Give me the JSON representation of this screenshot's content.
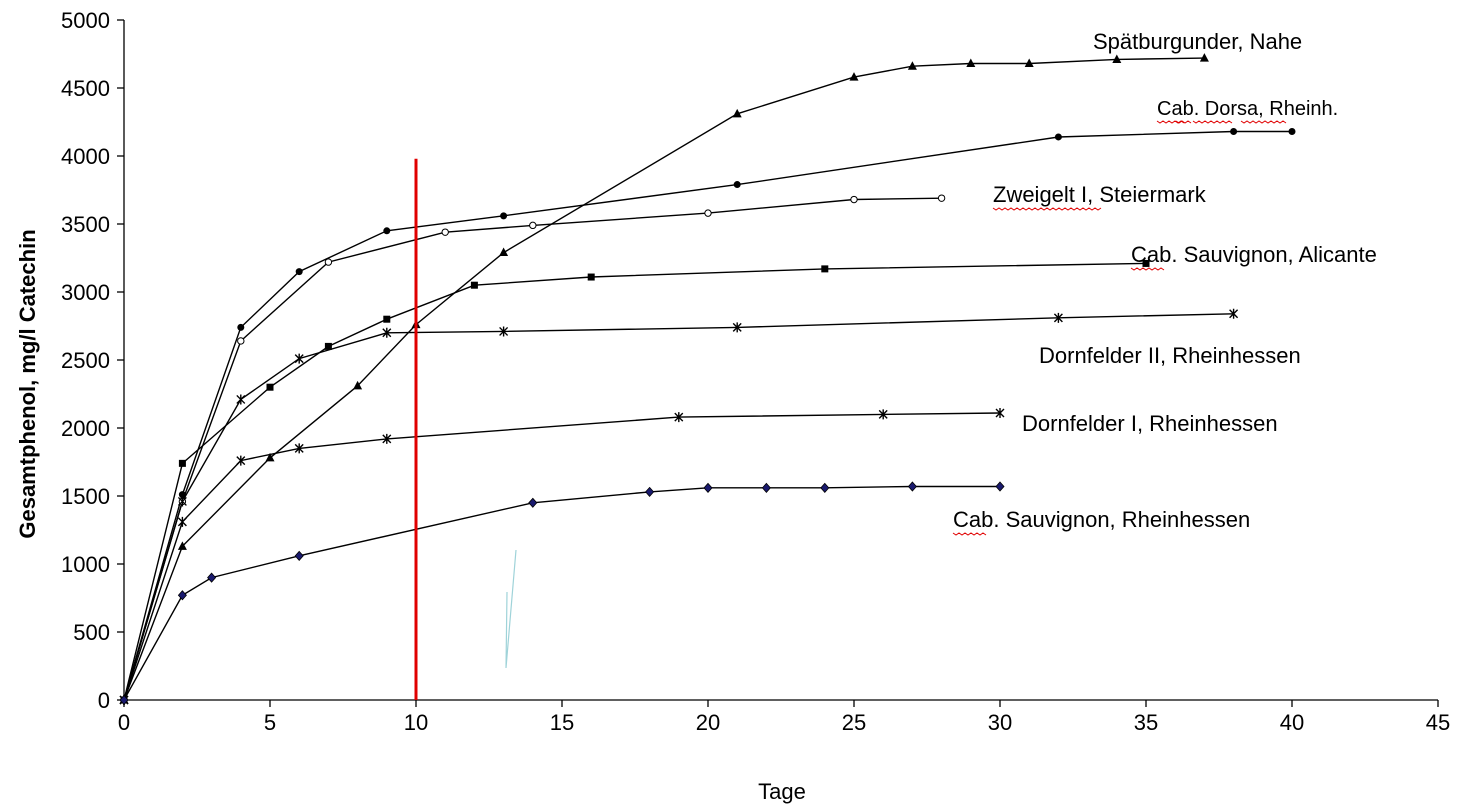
{
  "chart_data": {
    "type": "line",
    "title": "",
    "xlabel": "Tage",
    "ylabel": "Gesamtphenol, mg/l Catechin",
    "xlim": [
      0,
      45
    ],
    "ylim": [
      0,
      5000
    ],
    "x_ticks": [
      "0",
      "5",
      "10",
      "15",
      "20",
      "25",
      "30",
      "35",
      "40",
      "45"
    ],
    "y_ticks": [
      "0",
      "500",
      "1000",
      "1500",
      "2000",
      "2500",
      "3000",
      "3500",
      "4000",
      "4500",
      "5000"
    ],
    "grid": false,
    "legend": "none",
    "reference_line": {
      "x": 10,
      "y_from": 0,
      "y_to": 3980,
      "color": "#e00000"
    },
    "series": [
      {
        "name": "Spätburgunder, Nahe",
        "marker": "triangle",
        "points": [
          [
            0,
            0
          ],
          [
            2,
            1130
          ],
          [
            5,
            1780
          ],
          [
            8,
            2310
          ],
          [
            10,
            2760
          ],
          [
            13,
            3290
          ],
          [
            21,
            4310
          ],
          [
            25,
            4580
          ],
          [
            27,
            4660
          ],
          [
            29,
            4680
          ],
          [
            31,
            4680
          ],
          [
            34,
            4710
          ],
          [
            37,
            4720
          ]
        ]
      },
      {
        "name": "Cab. Dorsa, Rheinh.",
        "marker": "filled-circle",
        "points": [
          [
            0,
            0
          ],
          [
            2,
            1510
          ],
          [
            4,
            2740
          ],
          [
            6,
            3150
          ],
          [
            9,
            3450
          ],
          [
            13,
            3560
          ],
          [
            21,
            3790
          ],
          [
            32,
            4140
          ],
          [
            38,
            4180
          ],
          [
            40,
            4180
          ]
        ]
      },
      {
        "name": "Zweigelt I, Steiermark",
        "marker": "open-circle",
        "points": [
          [
            0,
            0
          ],
          [
            2,
            1460
          ],
          [
            4,
            2640
          ],
          [
            7,
            3220
          ],
          [
            11,
            3440
          ],
          [
            14,
            3490
          ],
          [
            20,
            3580
          ],
          [
            25,
            3680
          ],
          [
            28,
            3690
          ]
        ]
      },
      {
        "name": "Cab. Sauvignon, Alicante",
        "marker": "square",
        "points": [
          [
            0,
            0
          ],
          [
            2,
            1740
          ],
          [
            5,
            2300
          ],
          [
            7,
            2600
          ],
          [
            9,
            2800
          ],
          [
            12,
            3050
          ],
          [
            16,
            3110
          ],
          [
            24,
            3170
          ],
          [
            35,
            3210
          ]
        ]
      },
      {
        "name": "Dornfelder II, Rheinhessen",
        "marker": "asterisk",
        "points": [
          [
            0,
            0
          ],
          [
            2,
            1460
          ],
          [
            4,
            2210
          ],
          [
            6,
            2510
          ],
          [
            9,
            2700
          ],
          [
            13,
            2710
          ],
          [
            21,
            2740
          ],
          [
            32,
            2810
          ],
          [
            38,
            2840
          ]
        ]
      },
      {
        "name": "Dornfelder I, Rheinhessen",
        "marker": "asterisk",
        "points": [
          [
            0,
            0
          ],
          [
            2,
            1310
          ],
          [
            4,
            1760
          ],
          [
            6,
            1850
          ],
          [
            9,
            1920
          ],
          [
            19,
            2080
          ],
          [
            26,
            2100
          ],
          [
            30,
            2110
          ]
        ]
      },
      {
        "name": "Cab. Sauvignon, Rheinhessen",
        "marker": "diamond",
        "points": [
          [
            0,
            0
          ],
          [
            2,
            770
          ],
          [
            3,
            900
          ],
          [
            6,
            1060
          ],
          [
            14,
            1450
          ],
          [
            18,
            1530
          ],
          [
            20,
            1560
          ],
          [
            22,
            1560
          ],
          [
            24,
            1560
          ],
          [
            27,
            1570
          ],
          [
            30,
            1570
          ]
        ]
      }
    ],
    "series_labels": [
      "Spätburgunder, Nahe",
      "Cab. Dorsa, Rheinh.",
      "Zweigelt I, Steiermark",
      "Cab. Sauvignon, Alicante",
      "Dornfelder II, Rheinhessen",
      "Dornfelder I, Rheinhessen",
      "Cab. Sauvignon, Rheinhessen"
    ],
    "colors": {
      "line": "#000000",
      "reference": "#e00000",
      "stray_stroke": "#9fd3d9"
    }
  }
}
